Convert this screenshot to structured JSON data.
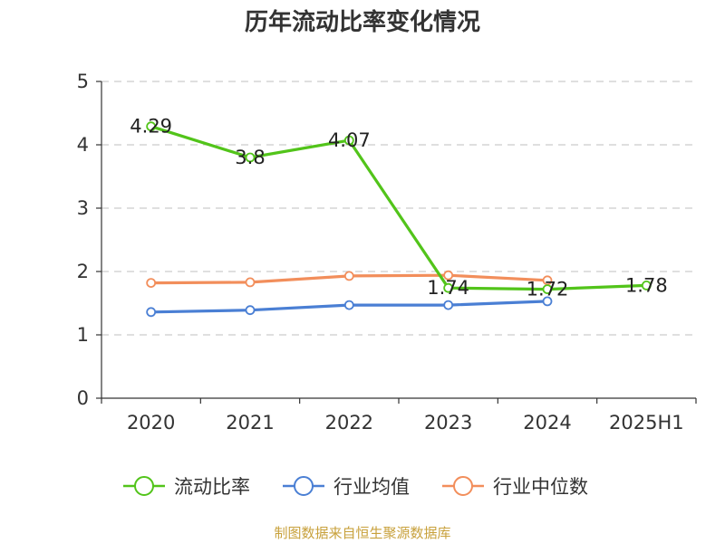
{
  "colors": {
    "current_ratio": "#52c41a",
    "industry_avg": "#4a7fd4",
    "industry_median": "#f28e5b",
    "source_text": "#c8a13c",
    "grid": "#cccccc"
  },
  "chart_data": {
    "type": "line",
    "title": "历年流动比率变化情况",
    "categories": [
      "2020",
      "2021",
      "2022",
      "2023",
      "2024",
      "2025H1"
    ],
    "ylim": [
      0,
      5
    ],
    "yticks": [
      0,
      1,
      2,
      3,
      4,
      5
    ],
    "grid": true,
    "legend_position": "bottom",
    "series": [
      {
        "name": "流动比率",
        "color": "#52c41a",
        "values": [
          4.29,
          3.8,
          4.07,
          1.74,
          1.72,
          1.78
        ],
        "labels": [
          "4.29",
          "3.8",
          "4.07",
          "1.74",
          "1.72",
          "1.78"
        ]
      },
      {
        "name": "行业均值",
        "color": "#4a7fd4",
        "values": [
          1.36,
          1.39,
          1.47,
          1.47,
          1.53,
          null
        ]
      },
      {
        "name": "行业中位数",
        "color": "#f28e5b",
        "values": [
          1.82,
          1.83,
          1.93,
          1.94,
          1.86,
          null
        ]
      }
    ]
  },
  "source": "制图数据来自恒生聚源数据库"
}
